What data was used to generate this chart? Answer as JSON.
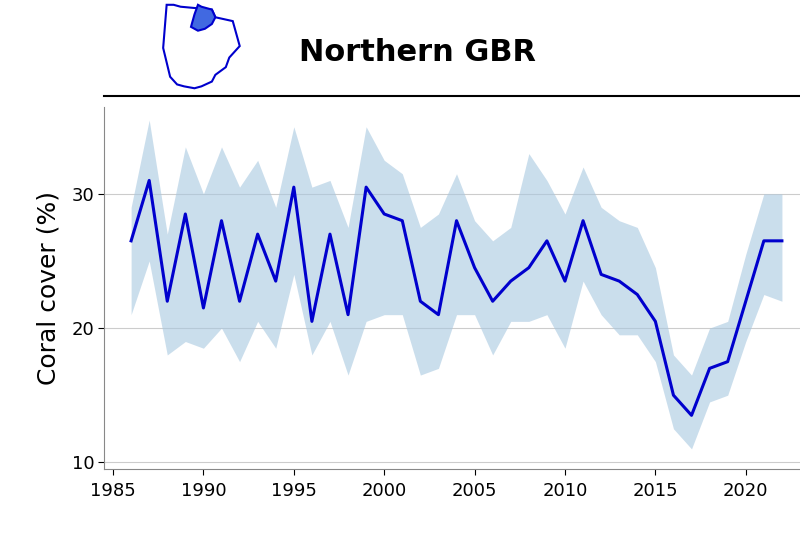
{
  "years": [
    1986,
    1987,
    1988,
    1989,
    1990,
    1991,
    1992,
    1993,
    1994,
    1995,
    1996,
    1997,
    1998,
    1999,
    2000,
    2001,
    2002,
    2003,
    2004,
    2005,
    2006,
    2007,
    2008,
    2009,
    2010,
    2011,
    2012,
    2013,
    2014,
    2015,
    2016,
    2017,
    2018,
    2019,
    2020,
    2021,
    2022
  ],
  "mean": [
    26.5,
    31.0,
    22.0,
    28.5,
    21.5,
    28.0,
    22.0,
    27.0,
    23.5,
    30.5,
    20.5,
    27.0,
    21.0,
    30.5,
    28.5,
    28.0,
    22.0,
    21.0,
    28.0,
    24.5,
    22.0,
    23.5,
    24.5,
    26.5,
    23.5,
    28.0,
    24.0,
    23.5,
    22.5,
    20.5,
    15.0,
    13.5,
    17.0,
    17.5,
    22.0,
    26.5,
    26.5
  ],
  "upper": [
    29.0,
    35.5,
    27.0,
    33.5,
    30.0,
    33.5,
    30.5,
    32.5,
    29.0,
    35.0,
    30.5,
    31.0,
    27.5,
    35.0,
    32.5,
    31.5,
    27.5,
    28.5,
    31.5,
    28.0,
    26.5,
    27.5,
    33.0,
    31.0,
    28.5,
    32.0,
    29.0,
    28.0,
    27.5,
    24.5,
    18.0,
    16.5,
    20.0,
    20.5,
    25.5,
    30.0,
    30.0
  ],
  "lower": [
    21.0,
    25.0,
    18.0,
    19.0,
    18.5,
    20.0,
    17.5,
    20.5,
    18.5,
    24.0,
    18.0,
    20.5,
    16.5,
    20.5,
    21.0,
    21.0,
    16.5,
    17.0,
    21.0,
    21.0,
    18.0,
    20.5,
    20.5,
    21.0,
    18.5,
    23.5,
    21.0,
    19.5,
    19.5,
    17.5,
    12.5,
    11.0,
    14.5,
    15.0,
    19.0,
    22.5,
    22.0
  ],
  "line_color": "#0000CD",
  "fill_color": "#a8c8e0",
  "fill_alpha": 0.6,
  "background_color": "#ffffff",
  "header_color": "#b0c8d8",
  "ylabel": "Coral cover (%)",
  "xlim": [
    1984.5,
    2023.0
  ],
  "ylim": [
    9.5,
    36.5
  ],
  "yticks": [
    10,
    20,
    30
  ],
  "xticks": [
    1985,
    1990,
    1995,
    2000,
    2005,
    2010,
    2015,
    2020
  ],
  "title": "Northern GBR",
  "title_fontsize": 22,
  "ylabel_fontsize": 18,
  "tick_fontsize": 13
}
